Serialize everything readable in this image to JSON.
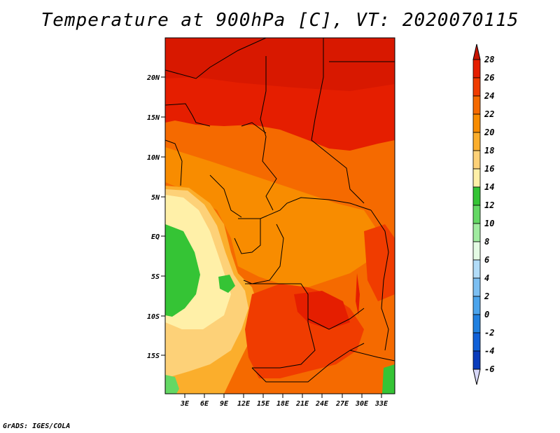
{
  "title": "Temperature at 900hPa [C], VT: 2020070115",
  "credit": "GrADS: IGES/COLA",
  "map": {
    "lat_labels": [
      "20N",
      "15N",
      "10N",
      "5N",
      "EQ",
      "5S",
      "10S",
      "15S"
    ],
    "lon_labels": [
      "3E",
      "6E",
      "9E",
      "12E",
      "15E",
      "18E",
      "21E",
      "24E",
      "27E",
      "30E",
      "33E"
    ]
  },
  "colorbar": {
    "labels": [
      "28",
      "26",
      "24",
      "22",
      "20",
      "18",
      "16",
      "14",
      "12",
      "10",
      "8",
      "6",
      "4",
      "2",
      "0",
      "-2",
      "-4",
      "-6"
    ],
    "colors_top_to_bottom": [
      "#e51e00",
      "#f03c00",
      "#f56a00",
      "#f88c00",
      "#fbae2c",
      "#fdd178",
      "#fff0a8",
      "#35c435",
      "#64d864",
      "#a0eba0",
      "#e4fae4",
      "#b2dcf8",
      "#7cbff2",
      "#4ba4ec",
      "#2080e0",
      "#1060d8",
      "#0a3cbc",
      "#0a0a78"
    ],
    "over_color": "#c81400",
    "under_color": "#d8d8f8"
  }
}
